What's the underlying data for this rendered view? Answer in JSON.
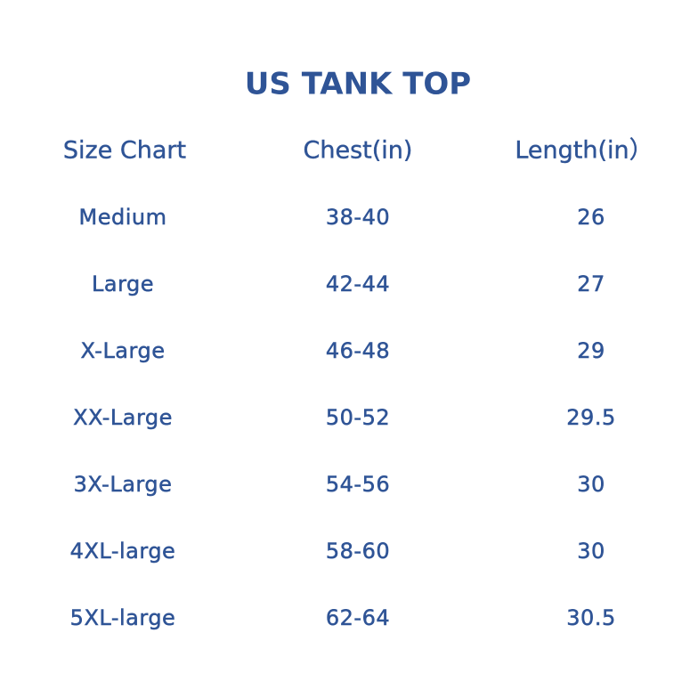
{
  "header": {
    "title": "US TANK TOP"
  },
  "table": {
    "columns": [
      "Size Chart",
      "Chest(in)",
      "Length(in）"
    ],
    "rows": [
      [
        "Medium",
        "38-40",
        "26"
      ],
      [
        "Large",
        "42-44",
        "27"
      ],
      [
        "X-Large",
        "46-48",
        "29"
      ],
      [
        "XX-Large",
        "50-52",
        "29.5"
      ],
      [
        "3X-Large",
        "54-56",
        "30"
      ],
      [
        "4XL-large",
        "58-60",
        "30"
      ],
      [
        "5XL-large",
        "62-64",
        "30.5"
      ]
    ]
  }
}
